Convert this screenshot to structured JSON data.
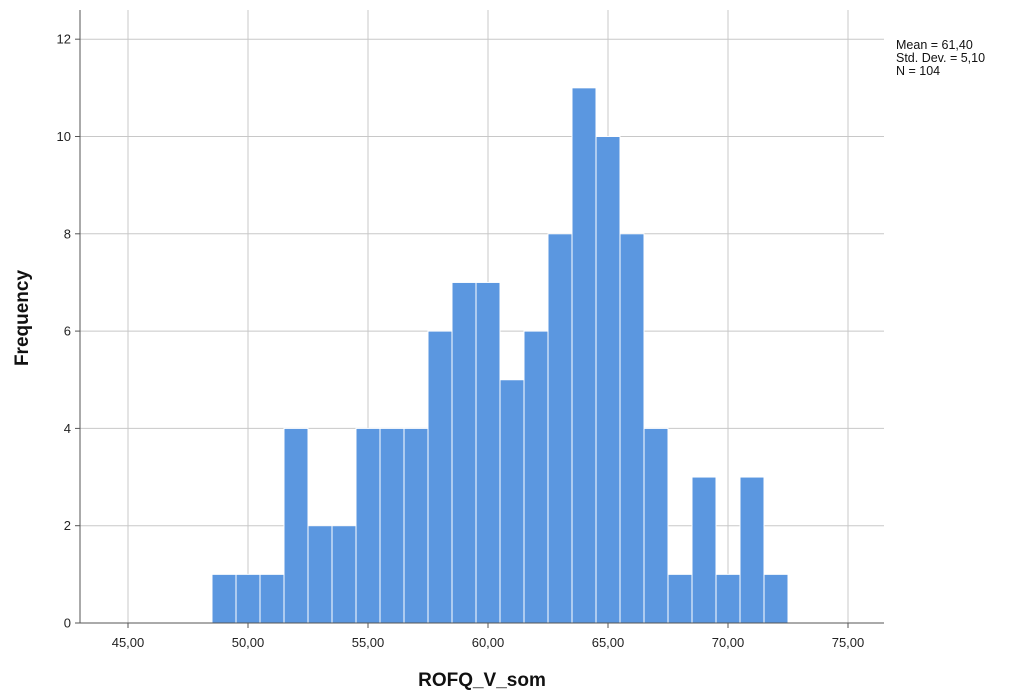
{
  "chart_data": {
    "type": "bar",
    "xlabel": "ROFQ_V_som",
    "ylabel": "Frequency",
    "xlim": [
      43,
      76.5
    ],
    "ylim": [
      0,
      12.6
    ],
    "x_ticks": [
      45,
      50,
      55,
      60,
      65,
      70,
      75
    ],
    "x_tick_labels": [
      "45,00",
      "50,00",
      "55,00",
      "60,00",
      "65,00",
      "70,00",
      "75,00"
    ],
    "y_ticks": [
      0,
      2,
      4,
      6,
      8,
      10,
      12
    ],
    "y_tick_labels": [
      "0",
      "2",
      "4",
      "6",
      "8",
      "10",
      "12"
    ],
    "grid": true,
    "bar_color": "#5b97e0",
    "bins": [
      {
        "start": 48.5,
        "end": 49.5,
        "count": 1
      },
      {
        "start": 49.5,
        "end": 50.5,
        "count": 1
      },
      {
        "start": 50.5,
        "end": 51.5,
        "count": 1
      },
      {
        "start": 51.5,
        "end": 52.5,
        "count": 4
      },
      {
        "start": 52.5,
        "end": 53.5,
        "count": 2
      },
      {
        "start": 53.5,
        "end": 54.5,
        "count": 2
      },
      {
        "start": 54.5,
        "end": 55.5,
        "count": 4
      },
      {
        "start": 55.5,
        "end": 56.5,
        "count": 4
      },
      {
        "start": 56.5,
        "end": 57.5,
        "count": 4
      },
      {
        "start": 57.5,
        "end": 58.5,
        "count": 6
      },
      {
        "start": 58.5,
        "end": 59.5,
        "count": 7
      },
      {
        "start": 59.5,
        "end": 60.5,
        "count": 7
      },
      {
        "start": 60.5,
        "end": 61.5,
        "count": 5
      },
      {
        "start": 61.5,
        "end": 62.5,
        "count": 6
      },
      {
        "start": 62.5,
        "end": 63.5,
        "count": 8
      },
      {
        "start": 63.5,
        "end": 64.5,
        "count": 11
      },
      {
        "start": 64.5,
        "end": 65.5,
        "count": 10
      },
      {
        "start": 65.5,
        "end": 66.5,
        "count": 8
      },
      {
        "start": 66.5,
        "end": 67.5,
        "count": 4
      },
      {
        "start": 67.5,
        "end": 68.5,
        "count": 1
      },
      {
        "start": 68.5,
        "end": 69.5,
        "count": 3
      },
      {
        "start": 69.5,
        "end": 70.5,
        "count": 1
      },
      {
        "start": 70.5,
        "end": 71.5,
        "count": 3
      },
      {
        "start": 71.5,
        "end": 72.5,
        "count": 1
      }
    ],
    "stats": [
      "Mean = 61,40",
      "Std. Dev. = 5,10",
      "N = 104"
    ]
  }
}
